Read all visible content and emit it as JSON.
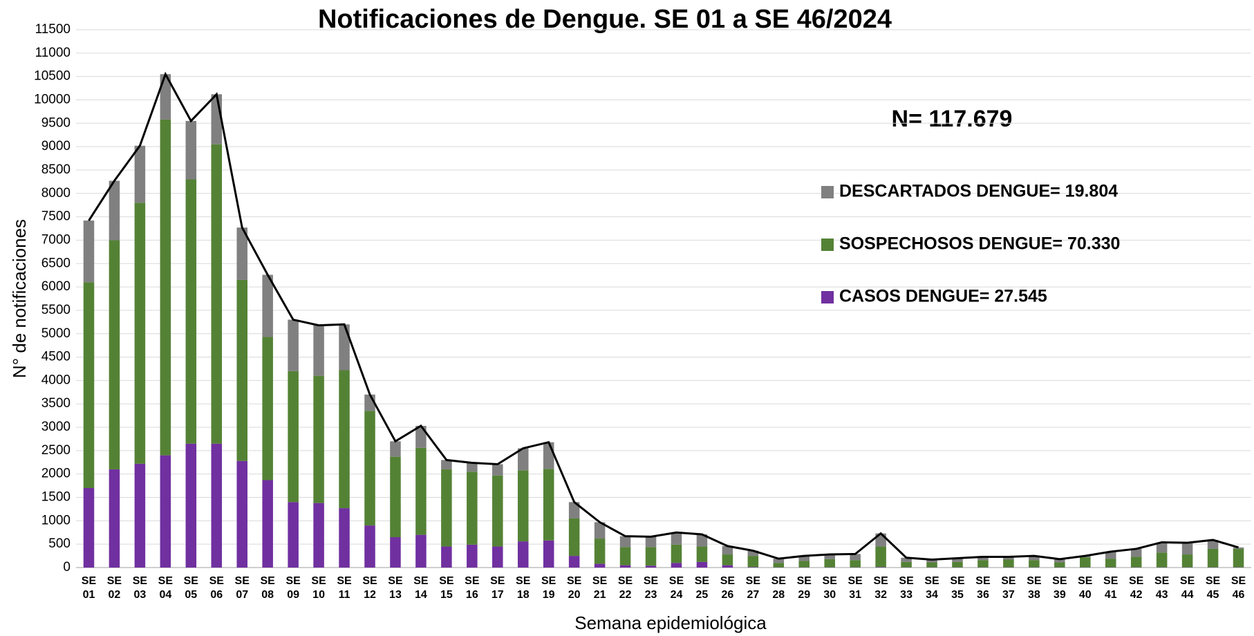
{
  "chart_data": {
    "type": "bar",
    "stacked": true,
    "title": "Notificaciones de Dengue. SE  01 a SE 46/2024",
    "xlabel": "Semana epidemiológica",
    "ylabel": "N° de notificaciones",
    "annotation": "N= 117.679",
    "categories": [
      "SE 01",
      "SE 02",
      "SE 03",
      "SE 04",
      "SE 05",
      "SE 06",
      "SE 07",
      "SE 08",
      "SE 09",
      "SE 10",
      "SE 11",
      "SE 12",
      "SE 13",
      "SE 14",
      "SE 15",
      "SE 16",
      "SE 17",
      "SE 18",
      "SE 19",
      "SE 20",
      "SE 21",
      "SE 22",
      "SE 23",
      "SE 24",
      "SE 25",
      "SE 26",
      "SE 27",
      "SE 28",
      "SE 29",
      "SE 30",
      "SE 31",
      "SE 32",
      "SE 33",
      "SE 34",
      "SE 35",
      "SE 36",
      "SE 37",
      "SE 38",
      "SE 39",
      "SE 40",
      "SE 41",
      "SE 42",
      "SE 43",
      "SE 44",
      "SE 45",
      "SE 46"
    ],
    "series": [
      {
        "name": "CASOS DENGUE= 27.545",
        "color": "#7030a0",
        "values": [
          1700,
          2100,
          2220,
          2400,
          2650,
          2650,
          2280,
          1870,
          1400,
          1380,
          1270,
          900,
          650,
          700,
          450,
          490,
          450,
          560,
          580,
          250,
          80,
          50,
          40,
          100,
          120,
          50,
          10,
          5,
          5,
          5,
          5,
          10,
          5,
          5,
          5,
          5,
          5,
          5,
          5,
          5,
          5,
          5,
          5,
          5,
          5,
          5
        ]
      },
      {
        "name": "SOSPECHOSOS DENGUE= 70.330",
        "color": "#548235",
        "values": [
          4400,
          4900,
          5580,
          7180,
          5650,
          6400,
          3870,
          3060,
          2800,
          2720,
          2950,
          2450,
          1720,
          1860,
          1650,
          1560,
          1520,
          1520,
          1530,
          800,
          540,
          390,
          400,
          390,
          330,
          230,
          240,
          95,
          135,
          175,
          155,
          440,
          115,
          105,
          115,
          155,
          165,
          155,
          105,
          215,
          185,
          225,
          315,
          275,
          395,
          395
        ]
      },
      {
        "name": "DESCARTADOS DENGUE= 19.804",
        "color": "#808080",
        "values": [
          1320,
          1270,
          1220,
          970,
          1250,
          1070,
          1120,
          1330,
          1100,
          1080,
          980,
          350,
          330,
          470,
          200,
          190,
          240,
          470,
          570,
          350,
          350,
          230,
          220,
          260,
          260,
          180,
          110,
          90,
          110,
          100,
          130,
          280,
          90,
          60,
          80,
          70,
          60,
          90,
          70,
          30,
          150,
          170,
          220,
          250,
          190,
          30
        ]
      },
      {
        "type": "line",
        "color": "#000000",
        "values": [
          7420,
          8270,
          9020,
          10550,
          9550,
          10120,
          7270,
          6260,
          5300,
          5180,
          5200,
          3700,
          2700,
          3030,
          2300,
          2240,
          2210,
          2550,
          2680,
          1400,
          970,
          670,
          660,
          750,
          710,
          460,
          360,
          190,
          250,
          280,
          290,
          730,
          210,
          170,
          200,
          230,
          230,
          250,
          180,
          250,
          340,
          400,
          540,
          530,
          590,
          430
        ]
      }
    ],
    "ylim": [
      0,
      11500
    ],
    "yticks": [
      0,
      500,
      1000,
      1500,
      2000,
      2500,
      3000,
      3500,
      4000,
      4500,
      5000,
      5500,
      6000,
      6500,
      7000,
      7500,
      8000,
      8500,
      9000,
      9500,
      10000,
      10500,
      11000,
      11500
    ],
    "grid": true
  }
}
